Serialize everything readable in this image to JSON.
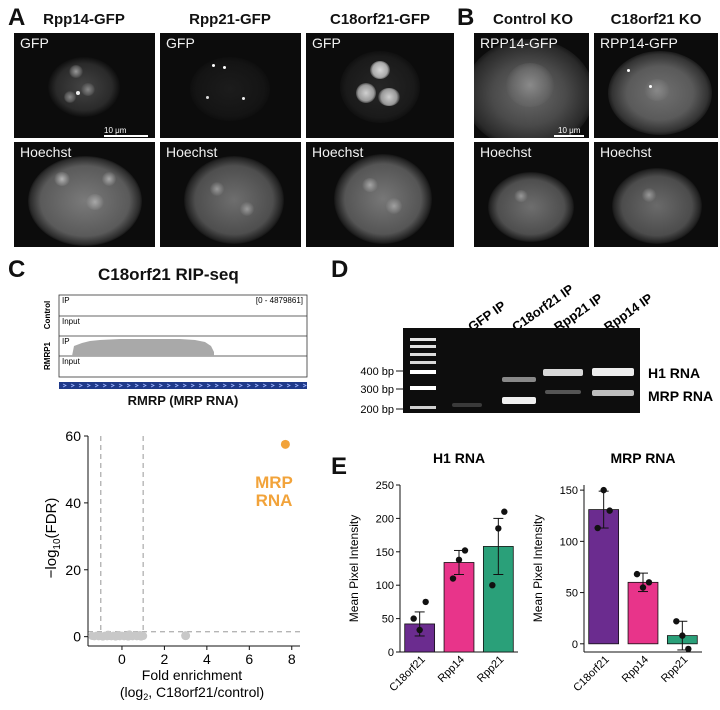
{
  "panels": {
    "a": {
      "label": "A",
      "columns": [
        {
          "title": "Rpp14-GFP",
          "top_tag": "GFP",
          "bottom_tag": "Hoechst"
        },
        {
          "title": "Rpp21-GFP",
          "top_tag": "GFP",
          "bottom_tag": "Hoechst"
        },
        {
          "title": "C18orf21-GFP",
          "top_tag": "GFP",
          "bottom_tag": "Hoechst"
        }
      ],
      "scale_label": "10 μm"
    },
    "b": {
      "label": "B",
      "columns": [
        {
          "title": "Control KO",
          "top_tag": "RPP14-GFP",
          "bottom_tag": "Hoechst"
        },
        {
          "title": "C18orf21 KO",
          "top_tag": "RPP14-GFP",
          "bottom_tag": "Hoechst"
        }
      ],
      "scale_label": "10 μm"
    },
    "c": {
      "label": "C",
      "title": "C18orf21 RIP-seq",
      "track_range": "[0 - 4879861]",
      "track_group_1": "Control",
      "track_group_2": "RMRP1",
      "track_ip": "IP",
      "track_input": "Input",
      "gene_label": "RMRP (MRP RNA)",
      "volcano_annotation_1": "MRP",
      "volcano_annotation_2": "RNA",
      "volcano_ylabel_prefix": "−log",
      "volcano_ylabel_sub": "10",
      "volcano_ylabel_suffix": "(FDR)",
      "volcano_xlabel_1": "Fold enrichment",
      "volcano_xlabel_2": "(log",
      "volcano_xlabel_2_sub": "2",
      "volcano_xlabel_2_rest": ", C18orf21/control)"
    },
    "d": {
      "label": "D",
      "lanes": [
        "GFP IP",
        "C18orf21 IP",
        "Rpp21 IP",
        "Rpp14 IP"
      ],
      "ladder_labels": [
        "400 bp",
        "300 bp",
        "200 bp"
      ],
      "band_labels": [
        "H1 RNA",
        "MRP RNA"
      ]
    },
    "e": {
      "label": "E"
    }
  },
  "chart_data": [
    {
      "type": "scatter",
      "title": "",
      "xlabel": "Fold enrichment (log2, C18orf21/control)",
      "ylabel": "−log10(FDR)",
      "xlim": [
        -1.6,
        8.2
      ],
      "ylim": [
        -1,
        60
      ],
      "xticks": [
        0,
        2,
        4,
        6,
        8
      ],
      "yticks": [
        0,
        20,
        40,
        60
      ],
      "thresholds": {
        "x": [
          -1,
          1
        ],
        "y": 1.5
      },
      "background_points": {
        "x": [
          -1.4,
          -1.3,
          -1.2,
          -1.1,
          -1.0,
          -0.9,
          -0.8,
          -0.7,
          -0.6,
          -0.5,
          -0.4,
          -0.3,
          -0.2,
          -0.1,
          0.0,
          0.1,
          0.2,
          0.3,
          0.4,
          0.5,
          0.6,
          0.7,
          0.8,
          0.9,
          1.0,
          -0.65,
          -0.15,
          0.35,
          0.85
        ],
        "y": [
          0.2,
          0.1,
          0.3,
          0.1,
          0.2,
          0.0,
          0.3,
          0.1,
          0.2,
          0.1,
          0.3,
          0.0,
          0.2,
          0.1,
          0.3,
          0.1,
          0.2,
          0.0,
          0.2,
          0.1,
          0.3,
          0.1,
          0.2,
          0.0,
          0.2,
          0.6,
          0.5,
          0.7,
          0.5
        ],
        "color": "#c8c8c8"
      },
      "outlier_points": {
        "x": [
          3.0
        ],
        "y": [
          0.3
        ],
        "color": "#c8c8c8"
      },
      "highlight_points": {
        "x": [
          7.7
        ],
        "y": [
          57.5
        ],
        "color": "#f2a33a"
      }
    },
    {
      "type": "bar",
      "title": "H1 RNA",
      "ylabel": "Mean Pixel Intensity",
      "categories": [
        "C18orf21",
        "Rpp14",
        "Rpp21"
      ],
      "values": [
        42,
        134,
        158
      ],
      "errors": [
        18,
        18,
        42
      ],
      "points": [
        [
          50,
          33,
          75
        ],
        [
          110,
          138,
          152
        ],
        [
          100,
          185,
          210
        ]
      ],
      "colors": [
        "#6b2c8f",
        "#e8348a",
        "#2aa079"
      ],
      "ylim": [
        0,
        250
      ],
      "yticks": [
        0,
        50,
        100,
        150,
        200,
        250
      ]
    },
    {
      "type": "bar",
      "title": "MRP RNA",
      "ylabel": "Mean Pixel Intensity",
      "categories": [
        "C18orf21",
        "Rpp14",
        "Rpp21"
      ],
      "values": [
        131,
        60,
        8
      ],
      "errors": [
        18,
        9,
        14
      ],
      "points": [
        [
          113,
          150,
          130
        ],
        [
          68,
          55,
          60
        ],
        [
          22,
          8,
          -5
        ]
      ],
      "colors": [
        "#6b2c8f",
        "#e8348a",
        "#2aa079"
      ],
      "ylim": [
        -8,
        155
      ],
      "yticks": [
        0,
        50,
        100,
        150
      ]
    }
  ]
}
